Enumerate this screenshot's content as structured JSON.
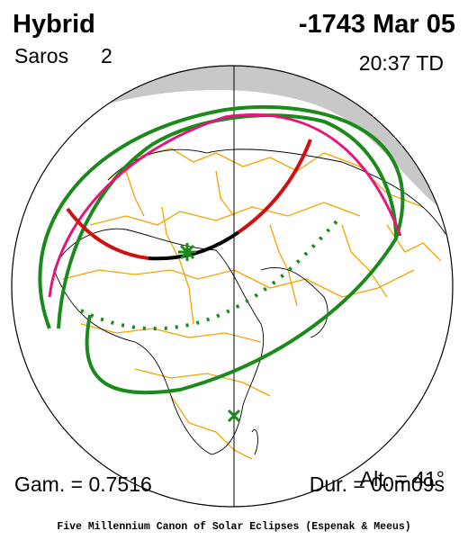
{
  "header": {
    "type": "Hybrid",
    "saros_label": "Saros",
    "saros_number": "2",
    "date": "-1743 Mar 05",
    "time": "20:37 TD"
  },
  "footer": {
    "altitude": "Alt. = 41°",
    "gamma": "Gam. = 0.7516",
    "duration": "Dur. = 00m09s",
    "credit": "Five Millennium Canon of Solar Eclipses (Espenak & Meeus)"
  }
}
